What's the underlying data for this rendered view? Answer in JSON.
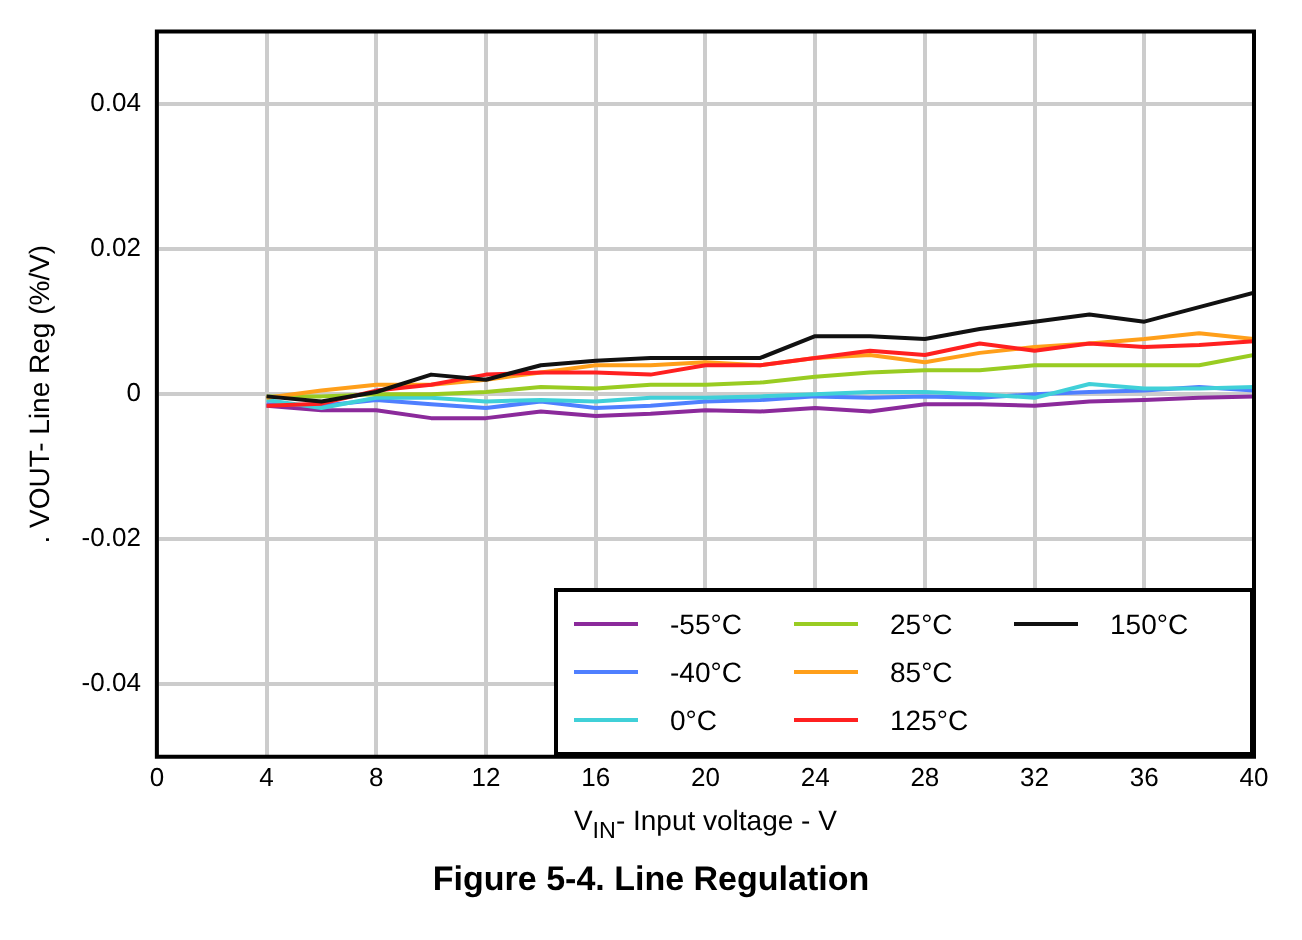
{
  "chart_data": {
    "type": "line",
    "title": "Figure 5-4. Line Regulation",
    "xlabel": "V$_{IN}$- Input voltage - V",
    "ylabel": ". VOUT- Line Reg (%/V)",
    "x": [
      4,
      6,
      8,
      10,
      12,
      14,
      16,
      18,
      20,
      22,
      24,
      26,
      28,
      30,
      32,
      34,
      36,
      38,
      40
    ],
    "xlim": [
      0,
      40
    ],
    "xticks": [
      0,
      4,
      8,
      12,
      16,
      20,
      24,
      28,
      32,
      36,
      40
    ],
    "ylim": [
      -0.05,
      0.05
    ],
    "yticks": [
      -0.04,
      -0.02,
      0,
      0.02,
      0.04
    ],
    "grid": true,
    "legend": "bottom right",
    "marker": "none",
    "line_style": "solid",
    "series": [
      {
        "name": "-55°C",
        "color": "#8b2a9b",
        "values": [
          -0.0016,
          -0.0022,
          -0.0022,
          -0.0033,
          -0.0033,
          -0.0024,
          -0.003,
          -0.0027,
          -0.0022,
          -0.0024,
          -0.0019,
          -0.0024,
          -0.0014,
          -0.0014,
          -0.0016,
          -0.001,
          -0.0008,
          -0.0005,
          -0.0003
        ]
      },
      {
        "name": "-40°C",
        "color": "#4f7fff",
        "values": [
          -0.0014,
          -0.0016,
          -0.0008,
          -0.0014,
          -0.0019,
          -0.001,
          -0.0019,
          -0.0016,
          -0.001,
          -0.0008,
          -0.0003,
          -0.0005,
          -0.0003,
          -0.0005,
          0,
          0.0003,
          0.0005,
          0.001,
          0.0005
        ]
      },
      {
        "name": "0°C",
        "color": "#40d0d8",
        "values": [
          -0.0008,
          -0.0019,
          -0.0005,
          -0.0005,
          -0.001,
          -0.0008,
          -0.001,
          -0.0005,
          -0.0005,
          -0.0003,
          0,
          0.0003,
          0.0003,
          0,
          -0.0005,
          0.0014,
          0.0008,
          0.0008,
          0.001
        ]
      },
      {
        "name": "25°C",
        "color": "#99cc22",
        "values": [
          -0.0003,
          -0.0003,
          0,
          0,
          0.0003,
          0.001,
          0.0008,
          0.0013,
          0.0013,
          0.0016,
          0.0024,
          0.003,
          0.0033,
          0.0033,
          0.004,
          0.004,
          0.004,
          0.004,
          0.0054
        ]
      },
      {
        "name": "85°C",
        "color": "#ff9f1a",
        "values": [
          -0.0005,
          0.0005,
          0.0013,
          0.0013,
          0.002,
          0.003,
          0.004,
          0.004,
          0.0044,
          0.004,
          0.005,
          0.0054,
          0.0044,
          0.0057,
          0.0065,
          0.007,
          0.0076,
          0.0084,
          0.0076
        ]
      },
      {
        "name": "125°C",
        "color": "#ff2020",
        "values": [
          -0.0016,
          -0.0013,
          0.0005,
          0.0013,
          0.0027,
          0.003,
          0.003,
          0.0027,
          0.004,
          0.004,
          0.005,
          0.006,
          0.0054,
          0.007,
          0.006,
          0.007,
          0.0065,
          0.0068,
          0.0073
        ]
      },
      {
        "name": "150°C",
        "color": "#111111",
        "values": [
          -0.0003,
          -0.001,
          0.0003,
          0.0027,
          0.002,
          0.004,
          0.0046,
          0.005,
          0.005,
          0.005,
          0.008,
          0.008,
          0.0076,
          0.009,
          0.01,
          0.011,
          0.01,
          0.012,
          0.014
        ]
      }
    ]
  }
}
